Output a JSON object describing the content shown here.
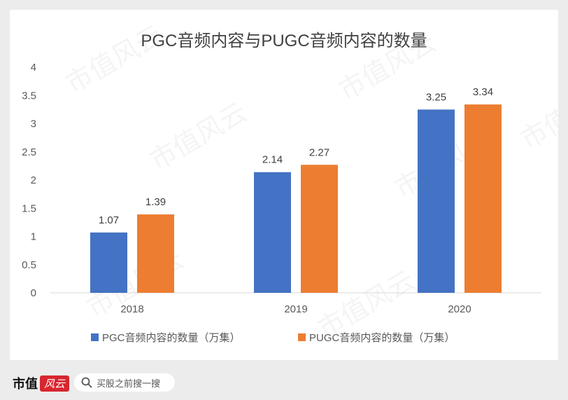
{
  "chart_data": {
    "type": "bar",
    "title": "PGC音频内容与PUGC音频内容的数量",
    "categories": [
      "2018",
      "2019",
      "2020"
    ],
    "series": [
      {
        "name": "PGC音频内容的数量（万集）",
        "color": "#4472c4",
        "values": [
          1.07,
          2.14,
          3.25
        ]
      },
      {
        "name": "PUGC音频内容的数量（万集）",
        "color": "#ed7d31",
        "values": [
          1.39,
          2.27,
          3.34
        ]
      }
    ],
    "yticks": [
      "0",
      "0.5",
      "1",
      "1.5",
      "2",
      "2.5",
      "3",
      "3.5",
      "4"
    ],
    "ylim": [
      0,
      4
    ],
    "grid": false,
    "legend": "bottom",
    "xlabel": "",
    "ylabel": ""
  },
  "watermark": "市值风云",
  "footer": {
    "brand": "市值",
    "brand_badge": "风云",
    "search_placeholder": "买股之前搜一搜",
    "search_icon": "search-icon"
  }
}
